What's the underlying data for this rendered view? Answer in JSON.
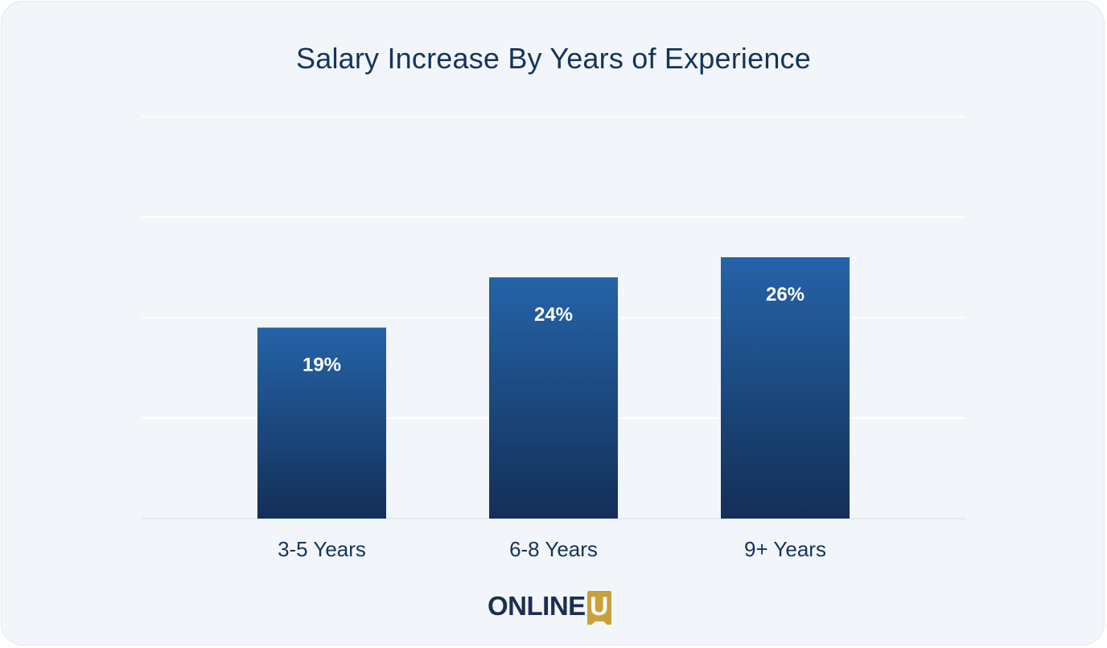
{
  "chart_data": {
    "type": "bar",
    "title": "Salary Increase By Years of Experience",
    "categories": [
      "3-5 Years",
      "6-8 Years",
      "9+ Years"
    ],
    "values": [
      19,
      24,
      26
    ],
    "value_labels": [
      "19%",
      "24%",
      "26%"
    ],
    "xlabel": "",
    "ylabel": "",
    "ylim": [
      0,
      40
    ],
    "grid": true,
    "legend": "none"
  },
  "brand": {
    "logo_text": "ONLINE",
    "logo_mark": "U"
  },
  "colors": {
    "bar_top": "#2563a8",
    "bar_bottom": "#132f57",
    "title": "#14345a",
    "gridline": "#ffffff",
    "logo_accent": "#c9a13b"
  }
}
